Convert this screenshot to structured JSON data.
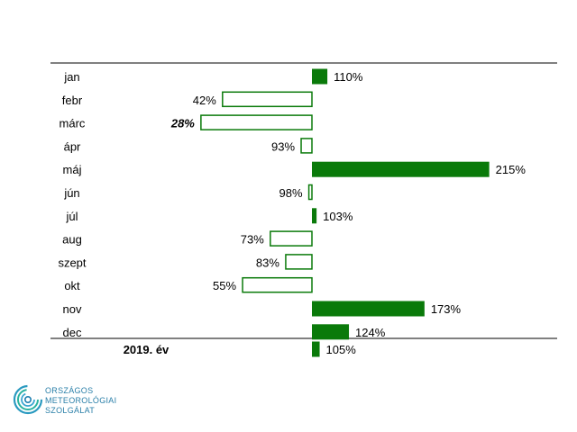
{
  "chart_data": {
    "type": "bar",
    "orientation": "horizontal",
    "baseline": 100,
    "unit": "%",
    "categories": [
      "jan",
      "febr",
      "márc",
      "ápr",
      "máj",
      "jún",
      "júl",
      "aug",
      "szept",
      "okt",
      "nov",
      "dec"
    ],
    "values": [
      110,
      42,
      28,
      93,
      215,
      98,
      103,
      73,
      83,
      55,
      173,
      124
    ],
    "labels": [
      "110%",
      "42%",
      "28%",
      "93%",
      "215%",
      "98%",
      "103%",
      "73%",
      "83%",
      "55%",
      "173%",
      "124%"
    ],
    "bold_italic_index": 2,
    "total": {
      "category": "2019. év",
      "value": 105,
      "label": "105%"
    },
    "colors": {
      "above": "#0a7a0a",
      "below_fill": "#ffffff",
      "below_stroke": "#0a7a0a"
    }
  },
  "logo": {
    "text_lines": [
      "ORSZÁGOS",
      "METEOROLÓGIAI",
      "SZOLGÁLAT"
    ],
    "color": "#2a7fa8"
  }
}
